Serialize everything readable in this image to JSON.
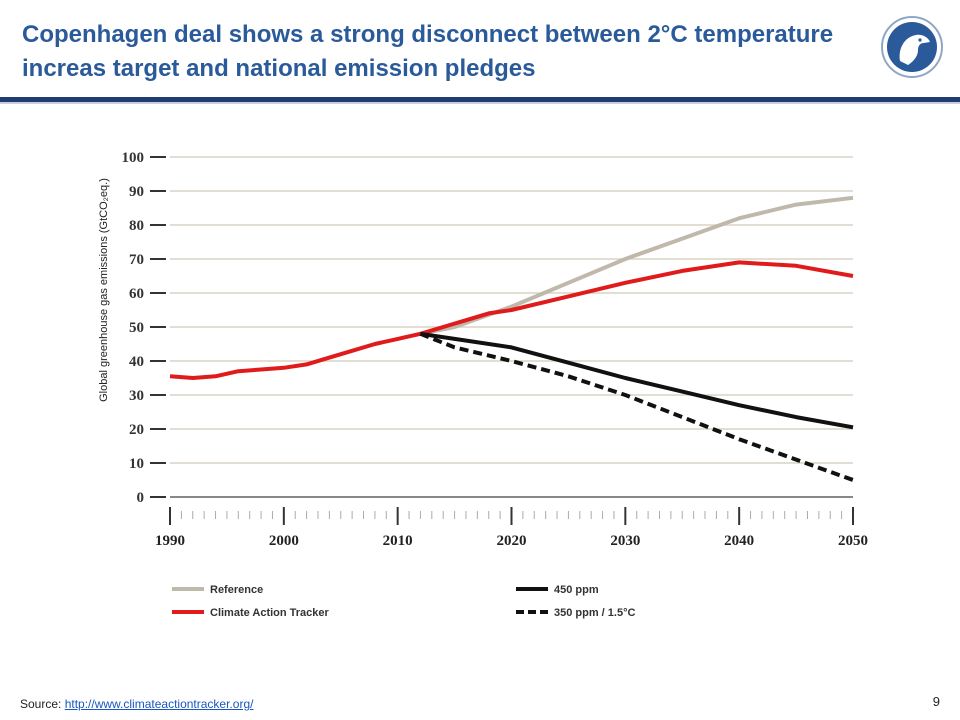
{
  "slide": {
    "title": "Copenhagen deal shows a strong disconnect between 2°C temperature increas target and national emission pledges",
    "source_label": "Source:",
    "source_link": "http://www.climateactiontracker.org/",
    "page_number": "9"
  },
  "colors": {
    "title": "#2a5a9a",
    "rule": "#1f3d73",
    "reference": "#c0b8aa",
    "climate_action_tracker": "#e01b1b",
    "ppm450": "#111111",
    "ppm350": "#111111",
    "grid": "#d8d4c4"
  },
  "logo": {
    "icon": "bird-head-logo-icon"
  },
  "chart_data": {
    "type": "line",
    "xlim": [
      1990,
      2050
    ],
    "ylim": [
      0,
      100
    ],
    "x_ticks": [
      1990,
      2000,
      2010,
      2020,
      2030,
      2040,
      2050
    ],
    "y_ticks": [
      0,
      10,
      20,
      30,
      40,
      50,
      60,
      70,
      80,
      90,
      100
    ],
    "ylabel": "Global greenhouse gas emissions (GtCO₂eq.)",
    "grid": true,
    "legend_position": "bottom",
    "series": [
      {
        "name": "Reference",
        "key": "reference",
        "style": "solid",
        "points": [
          [
            2012,
            48
          ],
          [
            2015,
            50
          ],
          [
            2020,
            56
          ],
          [
            2025,
            63
          ],
          [
            2030,
            70
          ],
          [
            2035,
            76
          ],
          [
            2040,
            82
          ],
          [
            2045,
            86
          ],
          [
            2050,
            88
          ]
        ]
      },
      {
        "name": "Climate Action Tracker",
        "key": "climate_action_tracker",
        "style": "solid",
        "points": [
          [
            1990,
            35.5
          ],
          [
            1992,
            35
          ],
          [
            1994,
            35.5
          ],
          [
            1996,
            37
          ],
          [
            1998,
            37.5
          ],
          [
            2000,
            38
          ],
          [
            2002,
            39
          ],
          [
            2004,
            41
          ],
          [
            2006,
            43
          ],
          [
            2008,
            45
          ],
          [
            2010,
            46.5
          ],
          [
            2012,
            48
          ],
          [
            2014,
            50
          ],
          [
            2016,
            52
          ],
          [
            2018,
            54
          ],
          [
            2020,
            55
          ],
          [
            2025,
            59
          ],
          [
            2030,
            63
          ],
          [
            2035,
            66.5
          ],
          [
            2040,
            69
          ],
          [
            2045,
            68
          ],
          [
            2050,
            65
          ]
        ]
      },
      {
        "name": "450 ppm",
        "key": "ppm450",
        "style": "solid",
        "points": [
          [
            2012,
            48
          ],
          [
            2015,
            46.5
          ],
          [
            2020,
            44
          ],
          [
            2025,
            39.5
          ],
          [
            2030,
            35
          ],
          [
            2035,
            31
          ],
          [
            2040,
            27
          ],
          [
            2045,
            23.5
          ],
          [
            2050,
            20.5
          ]
        ]
      },
      {
        "name": "350 ppm / 1.5°C",
        "key": "ppm350",
        "style": "dashed",
        "points": [
          [
            2012,
            48
          ],
          [
            2015,
            44
          ],
          [
            2020,
            40
          ],
          [
            2025,
            35.5
          ],
          [
            2030,
            30
          ],
          [
            2035,
            23.5
          ],
          [
            2040,
            17
          ],
          [
            2045,
            11
          ],
          [
            2050,
            5
          ]
        ]
      }
    ]
  }
}
